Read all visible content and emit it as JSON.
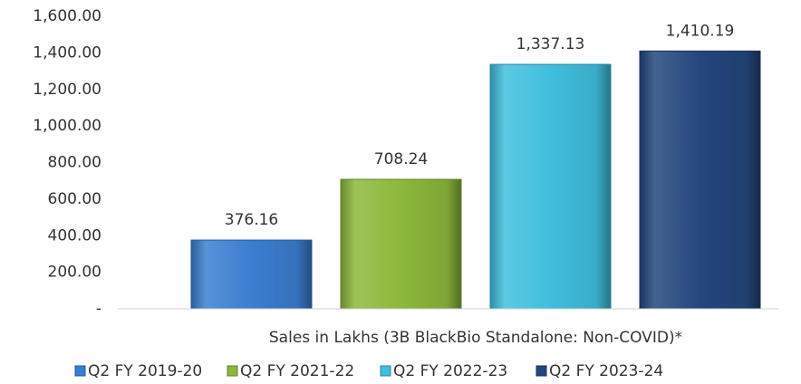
{
  "chart_data": {
    "type": "bar",
    "categories": [
      "Sales in Lakhs (3B BlackBio Standalone: Non-COVID)*"
    ],
    "series": [
      {
        "name": "Q2 FY 2019-20",
        "color": "#3b7dd0",
        "values": [
          376.16
        ],
        "value_labels": [
          "376.16"
        ]
      },
      {
        "name": "Q2 FY 2021-22",
        "color": "#8cb83b",
        "values": [
          708.24
        ],
        "value_labels": [
          "708.24"
        ]
      },
      {
        "name": "Q2 FY 2022-23",
        "color": "#3fbfdd",
        "values": [
          1337.13
        ],
        "value_labels": [
          "1,337.13"
        ]
      },
      {
        "name": "Q2 FY 2023-24",
        "color": "#23467c",
        "values": [
          1410.19
        ],
        "value_labels": [
          "1,410.19"
        ]
      }
    ],
    "ylim": [
      0,
      1600
    ],
    "yticks": [
      {
        "value": 0,
        "label": "-"
      },
      {
        "value": 200,
        "label": "200.00"
      },
      {
        "value": 400,
        "label": "400.00"
      },
      {
        "value": 600,
        "label": "600.00"
      },
      {
        "value": 800,
        "label": "800.00"
      },
      {
        "value": 1000,
        "label": "1,000.00"
      },
      {
        "value": 1200,
        "label": "1,200.00"
      },
      {
        "value": 1400,
        "label": "1,400.00"
      },
      {
        "value": 1600,
        "label": "1,600.00"
      }
    ],
    "grid": false,
    "legend": "bottom"
  }
}
